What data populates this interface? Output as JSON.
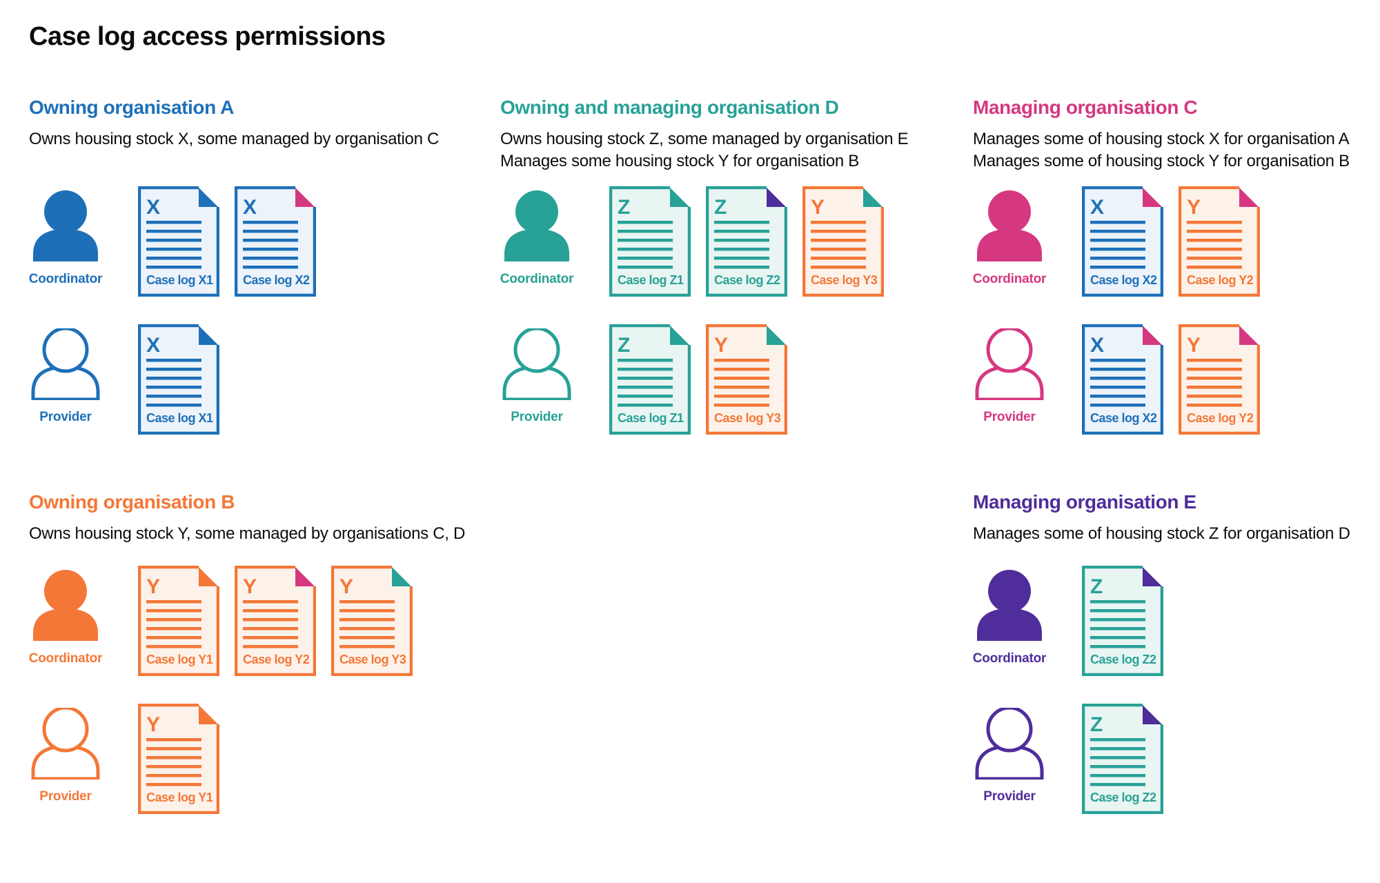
{
  "title": "Case log access permissions",
  "roles": {
    "coordinator": "Coordinator",
    "provider": "Provider"
  },
  "colors": {
    "ink": "#0b0c0c",
    "blue": "#1d70b8",
    "teal": "#28a197",
    "pink": "#d53880",
    "orange": "#f47738",
    "purple": "#4f2d9b",
    "blue_tint": "#ecf3fa",
    "teal_tint": "#e9f5f2",
    "orange_tint": "#fdf2ea"
  },
  "organisations": [
    {
      "id": "org-a",
      "name": "Owning organisation A",
      "color": "blue",
      "description": [
        "Owns housing stock X, some managed by organisation C"
      ],
      "rows": [
        {
          "role": "coordinator",
          "person": "filled",
          "docs": [
            {
              "letter": "X",
              "label": "Case log X1",
              "doc": "blue",
              "fold": "blue"
            },
            {
              "letter": "X",
              "label": "Case log X2",
              "doc": "blue",
              "fold": "pink"
            }
          ]
        },
        {
          "role": "provider",
          "person": "outline",
          "docs": [
            {
              "letter": "X",
              "label": "Case log X1",
              "doc": "blue",
              "fold": "blue"
            }
          ]
        }
      ]
    },
    {
      "id": "org-d",
      "name": "Owning and managing organisation D",
      "color": "teal",
      "description": [
        "Owns housing stock Z, some managed by organisation E",
        "Manages some housing stock Y for organisation B"
      ],
      "rows": [
        {
          "role": "coordinator",
          "person": "filled",
          "docs": [
            {
              "letter": "Z",
              "label": "Case log Z1",
              "doc": "teal",
              "fold": "teal"
            },
            {
              "letter": "Z",
              "label": "Case log Z2",
              "doc": "teal",
              "fold": "purple"
            },
            {
              "letter": "Y",
              "label": "Case log Y3",
              "doc": "orange",
              "fold": "teal"
            }
          ]
        },
        {
          "role": "provider",
          "person": "outline",
          "docs": [
            {
              "letter": "Z",
              "label": "Case log Z1",
              "doc": "teal",
              "fold": "teal"
            },
            {
              "letter": "Y",
              "label": "Case log Y3",
              "doc": "orange",
              "fold": "teal"
            }
          ]
        }
      ]
    },
    {
      "id": "org-c",
      "name": "Managing organisation C",
      "color": "pink",
      "description": [
        "Manages some of housing stock X for organisation A",
        "Manages some of housing stock Y for organisation B"
      ],
      "rows": [
        {
          "role": "coordinator",
          "person": "filled",
          "docs": [
            {
              "letter": "X",
              "label": "Case log X2",
              "doc": "blue",
              "fold": "pink"
            },
            {
              "letter": "Y",
              "label": "Case log Y2",
              "doc": "orange",
              "fold": "pink"
            }
          ]
        },
        {
          "role": "provider",
          "person": "outline",
          "docs": [
            {
              "letter": "X",
              "label": "Case log X2",
              "doc": "blue",
              "fold": "pink"
            },
            {
              "letter": "Y",
              "label": "Case log Y2",
              "doc": "orange",
              "fold": "pink"
            }
          ]
        }
      ]
    },
    {
      "id": "org-b",
      "name": "Owning organisation B",
      "color": "orange",
      "description": [
        "Owns housing stock Y, some managed by organisations C, D"
      ],
      "rows": [
        {
          "role": "coordinator",
          "person": "filled",
          "docs": [
            {
              "letter": "Y",
              "label": "Case log Y1",
              "doc": "orange",
              "fold": "orange"
            },
            {
              "letter": "Y",
              "label": "Case log Y2",
              "doc": "orange",
              "fold": "pink"
            },
            {
              "letter": "Y",
              "label": "Case log Y3",
              "doc": "orange",
              "fold": "teal"
            }
          ]
        },
        {
          "role": "provider",
          "person": "outline",
          "docs": [
            {
              "letter": "Y",
              "label": "Case log Y1",
              "doc": "orange",
              "fold": "orange"
            }
          ]
        }
      ]
    },
    {
      "id": "org-e",
      "name": "Managing organisation E",
      "color": "purple",
      "description": [
        "Manages some of housing stock Z for organisation D"
      ],
      "rows": [
        {
          "role": "coordinator",
          "person": "filled",
          "docs": [
            {
              "letter": "Z",
              "label": "Case log Z2",
              "doc": "teal",
              "fold": "purple"
            }
          ]
        },
        {
          "role": "provider",
          "person": "outline",
          "docs": [
            {
              "letter": "Z",
              "label": "Case log Z2",
              "doc": "teal",
              "fold": "purple"
            }
          ]
        }
      ]
    }
  ]
}
